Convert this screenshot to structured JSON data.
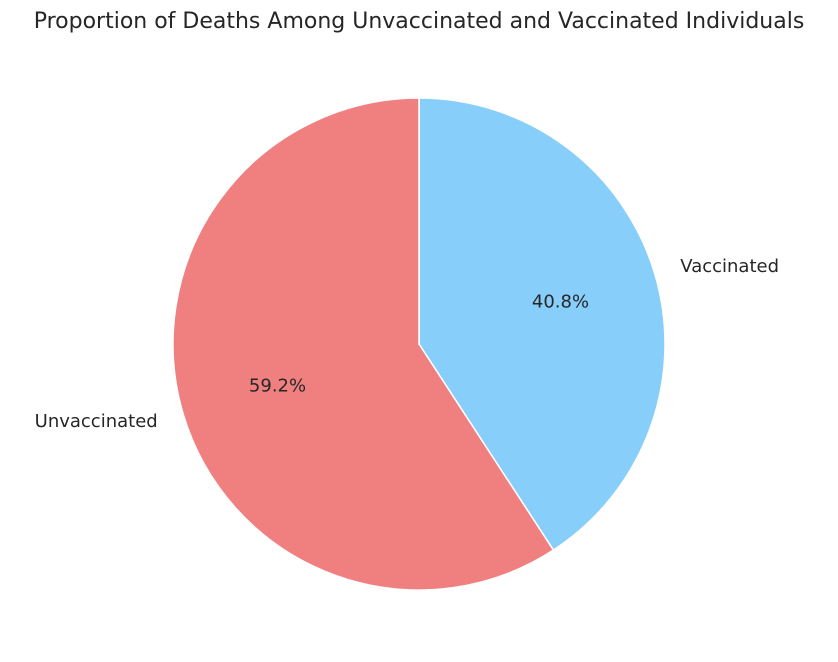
{
  "chart_data": {
    "type": "pie",
    "title": "Proportion of Deaths Among Unvaccinated and Vaccinated Individuals",
    "start_angle_deg": 90,
    "direction": "clockwise-from-top",
    "slices": [
      {
        "label": "Vaccinated",
        "value": 40.8,
        "pct_text": "40.8%",
        "color": "#87CEFA"
      },
      {
        "label": "Unvaccinated",
        "value": 59.2,
        "pct_text": "59.2%",
        "color": "#F08080"
      }
    ],
    "slice_edge_color": "#ffffff"
  }
}
